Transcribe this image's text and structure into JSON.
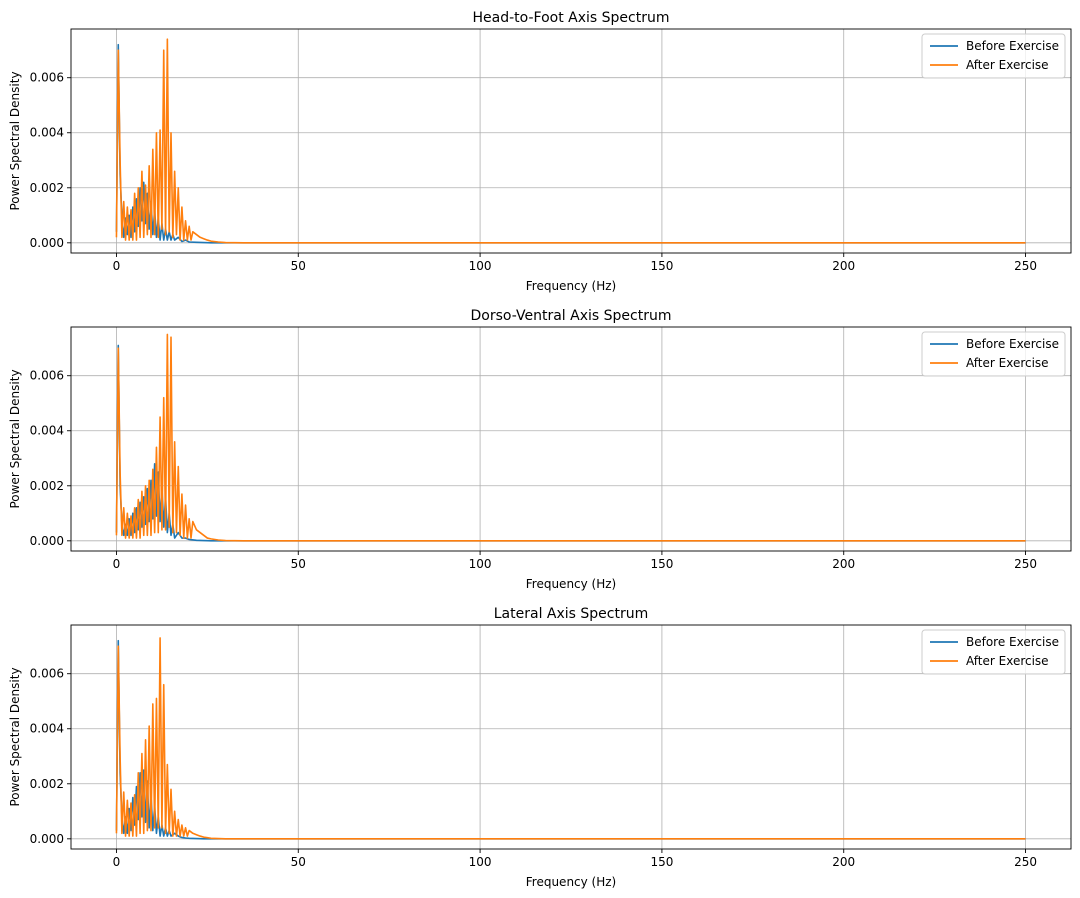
{
  "figure": {
    "colors": {
      "before": "#1f77b4",
      "after": "#ff7f0e",
      "grid": "#b0b0b0",
      "axis": "#000000"
    }
  },
  "chart_data": [
    {
      "type": "line",
      "title": "Head-to-Foot Axis Spectrum",
      "xlabel": "Frequency (Hz)",
      "ylabel": "Power Spectral Density",
      "xlim": [
        -12.5,
        262.5
      ],
      "ylim": [
        -0.00037,
        0.00777
      ],
      "xticks": [
        0,
        50,
        100,
        150,
        200,
        250
      ],
      "xtick_labels": [
        "0",
        "50",
        "100",
        "150",
        "200",
        "250"
      ],
      "yticks": [
        0.0,
        0.002,
        0.004,
        0.006
      ],
      "ytick_labels": [
        "0.000",
        "0.002",
        "0.004",
        "0.006"
      ],
      "grid": true,
      "legend": "upper right",
      "series": [
        {
          "name": "Before Exercise",
          "color": "#1f77b4",
          "x": [
            0,
            0.5,
            1.0,
            1.5,
            2.0,
            2.5,
            3.0,
            3.5,
            4.0,
            4.5,
            5.0,
            5.5,
            6.0,
            6.5,
            7.0,
            7.5,
            8.0,
            8.5,
            9.0,
            9.5,
            10.0,
            10.5,
            11.0,
            11.5,
            12.0,
            12.5,
            13.0,
            13.5,
            14.0,
            14.5,
            15.0,
            15.5,
            16.0,
            17,
            18,
            19,
            20,
            22,
            24,
            26,
            30,
            40,
            60,
            100,
            150,
            200,
            250
          ],
          "y": [
            0.0004,
            0.0072,
            0.0025,
            0.0009,
            0.0002,
            0.0009,
            0.0003,
            0.001,
            0.0002,
            0.0013,
            0.0004,
            0.0016,
            0.0006,
            0.002,
            0.0008,
            0.0022,
            0.0007,
            0.0018,
            0.0005,
            0.0015,
            0.0003,
            0.0012,
            0.0002,
            0.0009,
            0.0001,
            0.0007,
            0.0001,
            0.0005,
            0.0001,
            0.0004,
            0.0001,
            0.0003,
            0.0001,
            0.0002,
            5e-05,
            0.0001,
            3e-05,
            2e-05,
            1e-05,
            0.0,
            0.0,
            0.0,
            0.0,
            0.0,
            0.0,
            0.0,
            0.0
          ]
        },
        {
          "name": "After Exercise",
          "color": "#ff7f0e",
          "x": [
            0,
            0.5,
            1.0,
            1.5,
            2.0,
            2.5,
            3.0,
            3.5,
            4.0,
            4.5,
            5.0,
            5.5,
            6.0,
            6.5,
            7.0,
            7.5,
            8.0,
            8.5,
            9.0,
            9.5,
            10.0,
            10.5,
            11.0,
            11.5,
            12.0,
            12.5,
            13.0,
            13.5,
            14.0,
            14.5,
            15.0,
            15.5,
            16.0,
            16.5,
            17.0,
            17.5,
            18.0,
            18.5,
            19.0,
            19.5,
            20.0,
            20.5,
            21.0,
            22,
            23,
            24,
            25,
            26,
            28,
            30,
            35,
            40,
            60,
            100,
            150,
            200,
            250
          ],
          "y": [
            0.0002,
            0.007,
            0.003,
            0.0002,
            0.0015,
            0.0001,
            0.0013,
            0.0001,
            0.0012,
            0.0001,
            0.0018,
            0.0001,
            0.002,
            0.0002,
            0.0026,
            0.0002,
            0.0021,
            0.0003,
            0.0028,
            0.0002,
            0.0034,
            0.0003,
            0.004,
            0.0002,
            0.0041,
            0.0005,
            0.007,
            0.0003,
            0.0074,
            0.0004,
            0.004,
            0.0002,
            0.0026,
            0.0003,
            0.002,
            0.0001,
            0.0013,
            0.0001,
            0.0008,
            0.0001,
            0.0006,
            0.0001,
            0.0004,
            0.0003,
            0.0002,
            0.00015,
            0.0001,
            6e-05,
            3e-05,
            1e-05,
            0.0,
            0.0,
            0.0,
            0.0,
            0.0,
            0.0,
            0.0
          ]
        }
      ]
    },
    {
      "type": "line",
      "title": "Dorso-Ventral Axis Spectrum",
      "xlabel": "Frequency (Hz)",
      "ylabel": "Power Spectral Density",
      "xlim": [
        -12.5,
        262.5
      ],
      "ylim": [
        -0.00037,
        0.00777
      ],
      "xticks": [
        0,
        50,
        100,
        150,
        200,
        250
      ],
      "xtick_labels": [
        "0",
        "50",
        "100",
        "150",
        "200",
        "250"
      ],
      "yticks": [
        0.0,
        0.002,
        0.004,
        0.006
      ],
      "ytick_labels": [
        "0.000",
        "0.002",
        "0.004",
        "0.006"
      ],
      "grid": true,
      "legend": "upper right",
      "series": [
        {
          "name": "Before Exercise",
          "color": "#1f77b4",
          "x": [
            0,
            0.5,
            1.0,
            1.5,
            2.0,
            2.5,
            3.0,
            3.5,
            4.0,
            4.5,
            5.0,
            5.5,
            6.0,
            6.5,
            7.0,
            7.5,
            8.0,
            8.5,
            9.0,
            9.5,
            10.0,
            10.5,
            11.0,
            11.5,
            12.0,
            12.5,
            13.0,
            13.5,
            14.0,
            14.5,
            15.0,
            15.5,
            16.0,
            17,
            18,
            19,
            20,
            22,
            24,
            26,
            30,
            40,
            60,
            100,
            150,
            200,
            250
          ],
          "y": [
            0.0003,
            0.0071,
            0.002,
            0.0006,
            0.0002,
            0.0006,
            0.0002,
            0.0008,
            0.0002,
            0.001,
            0.0003,
            0.0012,
            0.0004,
            0.0014,
            0.0005,
            0.0016,
            0.0006,
            0.0019,
            0.0007,
            0.0022,
            0.0008,
            0.0028,
            0.0009,
            0.0025,
            0.0007,
            0.002,
            0.0005,
            0.0016,
            0.0003,
            0.001,
            0.0002,
            0.0006,
            0.0001,
            0.0003,
            0.0001,
            0.0001,
            5e-05,
            2e-05,
            1e-05,
            0.0,
            0.0,
            0.0,
            0.0,
            0.0,
            0.0,
            0.0,
            0.0
          ]
        },
        {
          "name": "After Exercise",
          "color": "#ff7f0e",
          "x": [
            0,
            0.5,
            1.0,
            1.5,
            2.0,
            2.5,
            3.0,
            3.5,
            4.0,
            4.5,
            5.0,
            5.5,
            6.0,
            6.5,
            7.0,
            7.5,
            8.0,
            8.5,
            9.0,
            9.5,
            10.0,
            10.5,
            11.0,
            11.5,
            12.0,
            12.5,
            13.0,
            13.5,
            14.0,
            14.5,
            15.0,
            15.5,
            16.0,
            16.5,
            17.0,
            17.5,
            18.0,
            18.5,
            19.0,
            19.5,
            20.0,
            20.5,
            21.0,
            22,
            23,
            24,
            25,
            26,
            28,
            30,
            35,
            40,
            60,
            100,
            150,
            200,
            250
          ],
          "y": [
            0.0002,
            0.007,
            0.0025,
            0.0002,
            0.0012,
            0.0001,
            0.001,
            0.0001,
            0.0009,
            0.0001,
            0.0012,
            0.0001,
            0.0015,
            0.0001,
            0.0018,
            0.0002,
            0.002,
            0.0002,
            0.0022,
            0.0002,
            0.0026,
            0.0003,
            0.0034,
            0.0003,
            0.0045,
            0.0004,
            0.0052,
            0.0004,
            0.0075,
            0.0005,
            0.0074,
            0.0003,
            0.0036,
            0.0003,
            0.0027,
            0.0002,
            0.0017,
            0.0001,
            0.0013,
            0.0001,
            0.0008,
            0.0001,
            0.0007,
            0.0004,
            0.0003,
            0.0002,
            0.0001,
            7e-05,
            3e-05,
            1e-05,
            0.0,
            0.0,
            0.0,
            0.0,
            0.0,
            0.0,
            0.0
          ]
        }
      ]
    },
    {
      "type": "line",
      "title": "Lateral Axis Spectrum",
      "xlabel": "Frequency (Hz)",
      "ylabel": "Power Spectral Density",
      "xlim": [
        -12.5,
        262.5
      ],
      "ylim": [
        -0.00037,
        0.00777
      ],
      "xticks": [
        0,
        50,
        100,
        150,
        200,
        250
      ],
      "xtick_labels": [
        "0",
        "50",
        "100",
        "150",
        "200",
        "250"
      ],
      "yticks": [
        0.0,
        0.002,
        0.004,
        0.006
      ],
      "ytick_labels": [
        "0.000",
        "0.002",
        "0.004",
        "0.006"
      ],
      "grid": true,
      "legend": "upper right",
      "series": [
        {
          "name": "Before Exercise",
          "color": "#1f77b4",
          "x": [
            0,
            0.5,
            1.0,
            1.5,
            2.0,
            2.5,
            3.0,
            3.5,
            4.0,
            4.5,
            5.0,
            5.5,
            6.0,
            6.5,
            7.0,
            7.5,
            8.0,
            8.5,
            9.0,
            9.5,
            10.0,
            10.5,
            11.0,
            11.5,
            12.0,
            12.5,
            13.0,
            13.5,
            14.0,
            14.5,
            15.0,
            16,
            17,
            18,
            19,
            20,
            22,
            24,
            26,
            30,
            40,
            60,
            100,
            150,
            200,
            250
          ],
          "y": [
            0.0003,
            0.0072,
            0.0024,
            0.0008,
            0.0002,
            0.0008,
            0.0002,
            0.0011,
            0.0003,
            0.0015,
            0.0005,
            0.0019,
            0.0007,
            0.0024,
            0.0008,
            0.0025,
            0.0006,
            0.0021,
            0.0004,
            0.0016,
            0.0003,
            0.0012,
            0.0002,
            0.0008,
            0.0001,
            0.0005,
            0.0001,
            0.0004,
            0.0001,
            0.0003,
            0.0001,
            0.0002,
            0.0001,
            5e-05,
            3e-05,
            2e-05,
            1e-05,
            0.0,
            0.0,
            0.0,
            0.0,
            0.0,
            0.0,
            0.0,
            0.0,
            0.0
          ]
        },
        {
          "name": "After Exercise",
          "color": "#ff7f0e",
          "x": [
            0,
            0.5,
            1.0,
            1.5,
            2.0,
            2.5,
            3.0,
            3.5,
            4.0,
            4.5,
            5.0,
            5.5,
            6.0,
            6.5,
            7.0,
            7.5,
            8.0,
            8.5,
            9.0,
            9.5,
            10.0,
            10.5,
            11.0,
            11.5,
            12.0,
            12.5,
            13.0,
            13.5,
            14.0,
            14.5,
            15.0,
            15.5,
            16.0,
            16.5,
            17.0,
            17.5,
            18.0,
            18.5,
            19.0,
            19.5,
            20.0,
            21,
            22,
            23,
            24,
            25,
            26,
            28,
            30,
            35,
            40,
            60,
            100,
            150,
            200,
            250
          ],
          "y": [
            0.0002,
            0.007,
            0.003,
            0.0002,
            0.0017,
            0.0001,
            0.0014,
            0.0001,
            0.0013,
            0.0001,
            0.0016,
            0.0001,
            0.0024,
            0.0002,
            0.0031,
            0.0002,
            0.0036,
            0.0003,
            0.0041,
            0.0003,
            0.0049,
            0.0004,
            0.0051,
            0.0004,
            0.0073,
            0.0004,
            0.0056,
            0.0002,
            0.0027,
            0.0002,
            0.0018,
            0.0001,
            0.001,
            0.0001,
            0.0007,
            0.0001,
            0.0005,
            0.0001,
            0.0004,
            0.0001,
            0.0003,
            0.0002,
            0.00015,
            0.0001,
            6e-05,
            4e-05,
            2e-05,
            1e-05,
            0.0,
            0.0,
            0.0,
            0.0,
            0.0,
            0.0,
            0.0,
            0.0
          ]
        }
      ]
    }
  ]
}
